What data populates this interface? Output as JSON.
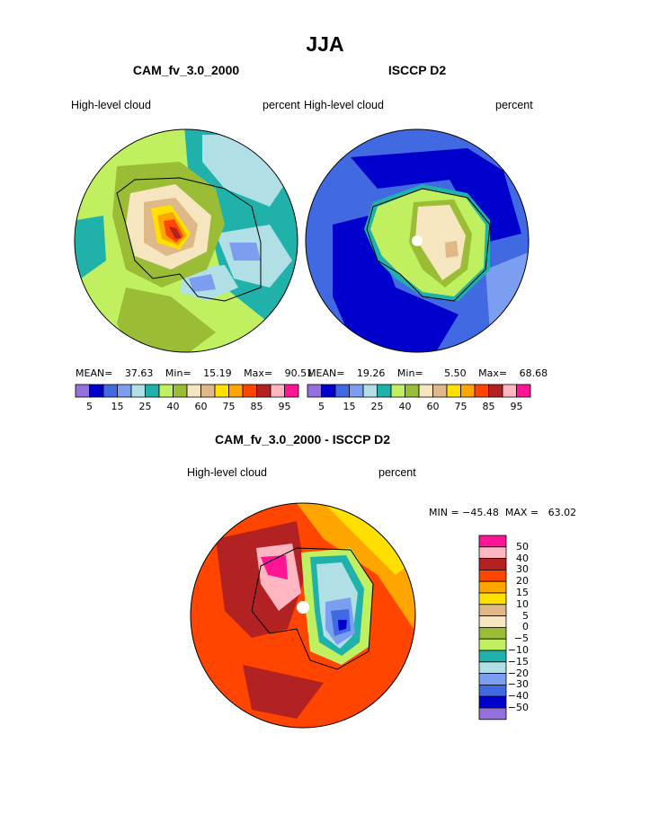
{
  "title": "JJA",
  "panels": [
    {
      "model": "CAM_fv_3.0_2000",
      "variable": "High-level cloud",
      "units": "percent",
      "stats": {
        "mean_label": "MEAN=",
        "mean": "37.63",
        "min_label": "Min=",
        "min": "15.19",
        "max_label": "Max=",
        "max": "90.51"
      }
    },
    {
      "model": "ISCCP D2",
      "variable": "High-level cloud",
      "units": "percent",
      "stats": {
        "mean_label": "MEAN=",
        "mean": "19.26",
        "min_label": "Min=",
        "min": "5.50",
        "max_label": "Max=",
        "max": "68.68"
      }
    }
  ],
  "colorbar": {
    "colors": [
      "#9370db",
      "#0000cd",
      "#4169e1",
      "#7b9ef0",
      "#b0e0e6",
      "#20b2aa",
      "#c0f060",
      "#9abd35",
      "#f5e6c0",
      "#deb887",
      "#ffe000",
      "#ffa500",
      "#ff4500",
      "#b22222",
      "#ffb6c1",
      "#ff1493"
    ],
    "labels": [
      "5",
      "15",
      "25",
      "40",
      "60",
      "75",
      "85",
      "95"
    ],
    "levels": [
      5,
      10,
      15,
      20,
      25,
      30,
      40,
      50,
      60,
      70,
      75,
      80,
      85,
      90,
      95
    ]
  },
  "diff": {
    "title": "CAM_fv_3.0_2000 - ISCCP D2",
    "variable": "High-level cloud",
    "units": "percent",
    "minmax": "MIN = −45.48  MAX =   63.02",
    "colors": [
      "#ff1493",
      "#ffb6c1",
      "#b22222",
      "#ff4500",
      "#ffa500",
      "#ffe000",
      "#deb887",
      "#f5e6c0",
      "#9abd35",
      "#c0f060",
      "#20b2aa",
      "#b0e0e6",
      "#7b9ef0",
      "#4169e1",
      "#0000cd",
      "#9370db"
    ],
    "labels": [
      "50",
      "40",
      "30",
      "20",
      "15",
      "10",
      "5",
      "0",
      "−5",
      "−10",
      "−15",
      "−20",
      "−30",
      "−40",
      "−50"
    ]
  }
}
